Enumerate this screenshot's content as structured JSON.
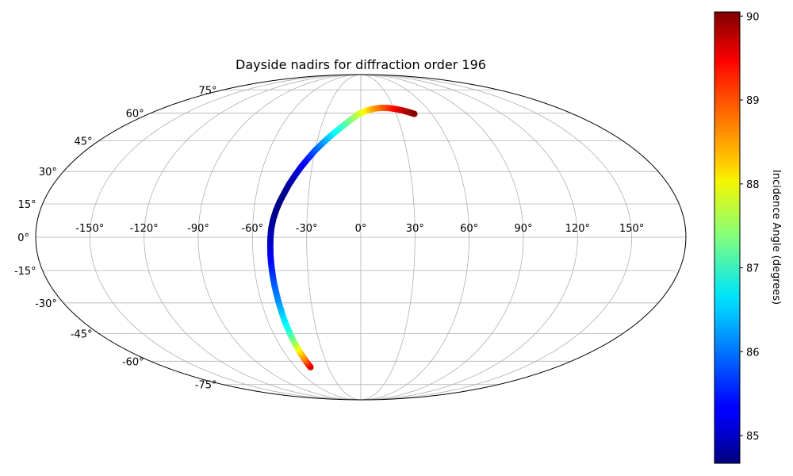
{
  "chart_data": {
    "type": "scatter",
    "projection": "mollweide",
    "title": "Dayside nadirs for diffraction order 196",
    "colorbar_label": "Incidence Angle (degrees)",
    "colormap": "jet",
    "color_range": [
      84.67,
      90.05
    ],
    "colorbar_ticks": [
      85,
      86,
      87,
      88,
      89,
      90
    ],
    "colorbar_tick_labels": [
      "85",
      "86",
      "87",
      "88",
      "89",
      "90"
    ],
    "lon_ticks": [
      -150,
      -120,
      -90,
      -60,
      -30,
      0,
      30,
      60,
      90,
      120,
      150
    ],
    "lon_tick_labels": [
      "-150°",
      "-120°",
      "-90°",
      "-60°",
      "-30°",
      "0°",
      "30°",
      "60°",
      "90°",
      "120°",
      "150°"
    ],
    "lat_ticks": [
      75,
      60,
      45,
      30,
      15,
      0,
      -15,
      -30,
      -45,
      -60,
      -75
    ],
    "lat_tick_labels": [
      "75°",
      "60°",
      "45°",
      "30°",
      "15°",
      "0°",
      "-15°",
      "-30°",
      "-45°",
      "-60°",
      "-75°"
    ],
    "grid": true,
    "legend": "none",
    "points": [
      {
        "lon": -46.3,
        "lat": -63.5,
        "incidence": 89.7
      },
      {
        "lon": -46.8,
        "lat": -61.0,
        "incidence": 89.2
      },
      {
        "lon": -47.2,
        "lat": -58.0,
        "incidence": 88.7
      },
      {
        "lon": -47.7,
        "lat": -55.0,
        "incidence": 88.3
      },
      {
        "lon": -48.0,
        "lat": -52.0,
        "incidence": 87.9
      },
      {
        "lon": -48.3,
        "lat": -49.0,
        "incidence": 87.5
      },
      {
        "lon": -48.6,
        "lat": -46.0,
        "incidence": 87.2
      },
      {
        "lon": -48.8,
        "lat": -43.0,
        "incidence": 86.9
      },
      {
        "lon": -49.1,
        "lat": -40.0,
        "incidence": 86.7
      },
      {
        "lon": -49.3,
        "lat": -36.0,
        "incidence": 86.5
      },
      {
        "lon": -49.5,
        "lat": -32.0,
        "incidence": 86.3
      },
      {
        "lon": -49.7,
        "lat": -28.0,
        "incidence": 86.1
      },
      {
        "lon": -49.9,
        "lat": -24.0,
        "incidence": 85.95
      },
      {
        "lon": -50.1,
        "lat": -20.0,
        "incidence": 85.8
      },
      {
        "lon": -50.2,
        "lat": -16.0,
        "incidence": 85.6
      },
      {
        "lon": -50.3,
        "lat": -12.0,
        "incidence": 85.45
      },
      {
        "lon": -50.3,
        "lat": -8.0,
        "incidence": 85.3
      },
      {
        "lon": -50.2,
        "lat": -4.0,
        "incidence": 85.15
      },
      {
        "lon": -50.0,
        "lat": 0.0,
        "incidence": 85.0
      },
      {
        "lon": -49.6,
        "lat": 4.0,
        "incidence": 84.9
      },
      {
        "lon": -48.8,
        "lat": 8.0,
        "incidence": 84.8
      },
      {
        "lon": -47.6,
        "lat": 12.0,
        "incidence": 84.72
      },
      {
        "lon": -46.0,
        "lat": 16.0,
        "incidence": 84.7
      },
      {
        "lon": -44.0,
        "lat": 20.0,
        "incidence": 84.75
      },
      {
        "lon": -42.0,
        "lat": 24.0,
        "incidence": 84.85
      },
      {
        "lon": -39.5,
        "lat": 28.0,
        "incidence": 85.0
      },
      {
        "lon": -36.8,
        "lat": 32.0,
        "incidence": 85.2
      },
      {
        "lon": -33.6,
        "lat": 36.0,
        "incidence": 85.45
      },
      {
        "lon": -30.1,
        "lat": 40.0,
        "incidence": 85.75
      },
      {
        "lon": -25.8,
        "lat": 44.0,
        "incidence": 86.1
      },
      {
        "lon": -20.8,
        "lat": 48.0,
        "incidence": 86.5
      },
      {
        "lon": -15.0,
        "lat": 52.0,
        "incidence": 86.9
      },
      {
        "lon": -8.5,
        "lat": 56.0,
        "incidence": 87.3
      },
      {
        "lon": -2.0,
        "lat": 59.5,
        "incidence": 87.7
      },
      {
        "lon": 5.0,
        "lat": 61.5,
        "incidence": 88.1
      },
      {
        "lon": 12.0,
        "lat": 62.7,
        "incidence": 88.5
      },
      {
        "lon": 19.0,
        "lat": 63.2,
        "incidence": 88.8
      },
      {
        "lon": 26.0,
        "lat": 63.0,
        "incidence": 89.1
      },
      {
        "lon": 32.0,
        "lat": 62.4,
        "incidence": 89.4
      },
      {
        "lon": 37.5,
        "lat": 61.5,
        "incidence": 89.65
      },
      {
        "lon": 42.0,
        "lat": 60.5,
        "incidence": 89.85
      },
      {
        "lon": 45.5,
        "lat": 59.6,
        "incidence": 90.0
      }
    ]
  }
}
